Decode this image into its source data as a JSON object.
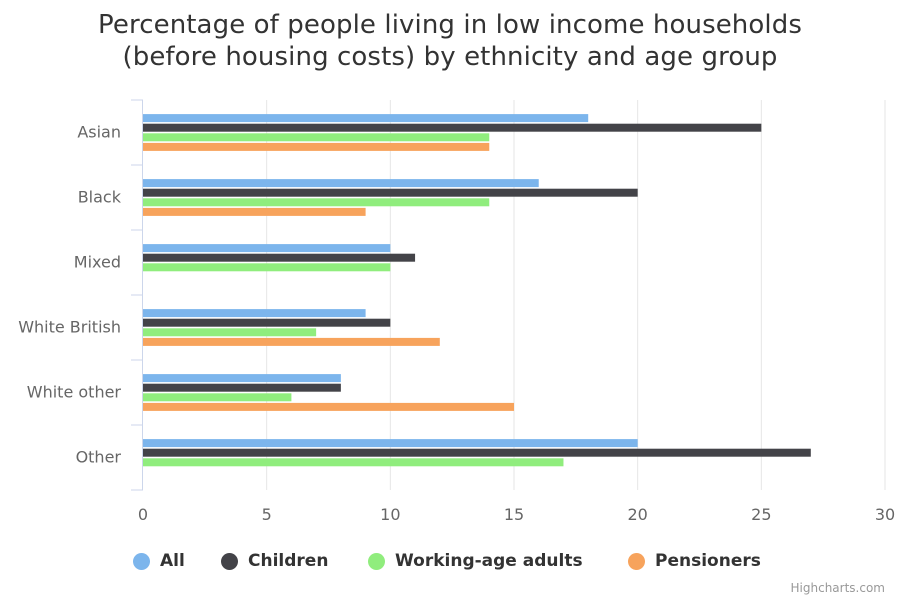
{
  "chart_data": {
    "type": "bar",
    "orientation": "horizontal",
    "title_lines": [
      "Percentage of people living in low income households",
      "(before housing costs) by ethnicity and age group"
    ],
    "categories": [
      "Asian",
      "Black",
      "Mixed",
      "White British",
      "White other",
      "Other"
    ],
    "series": [
      {
        "name": "All",
        "color": "#7cb5ec",
        "values": [
          18,
          16,
          10,
          9,
          8,
          20
        ]
      },
      {
        "name": "Children",
        "color": "#434348",
        "values": [
          25,
          20,
          11,
          10,
          8,
          27
        ]
      },
      {
        "name": "Working-age adults",
        "color": "#90ed7d",
        "values": [
          14,
          14,
          10,
          7,
          6,
          17
        ]
      },
      {
        "name": "Pensioners",
        "color": "#f7a35c",
        "values": [
          14,
          9,
          null,
          12,
          15,
          null
        ]
      }
    ],
    "xlim": [
      0,
      30
    ],
    "x_ticks": [
      0,
      5,
      10,
      15,
      20,
      25,
      30
    ],
    "grid": true,
    "legend_position": "bottom"
  },
  "credits": "Highcharts.com"
}
